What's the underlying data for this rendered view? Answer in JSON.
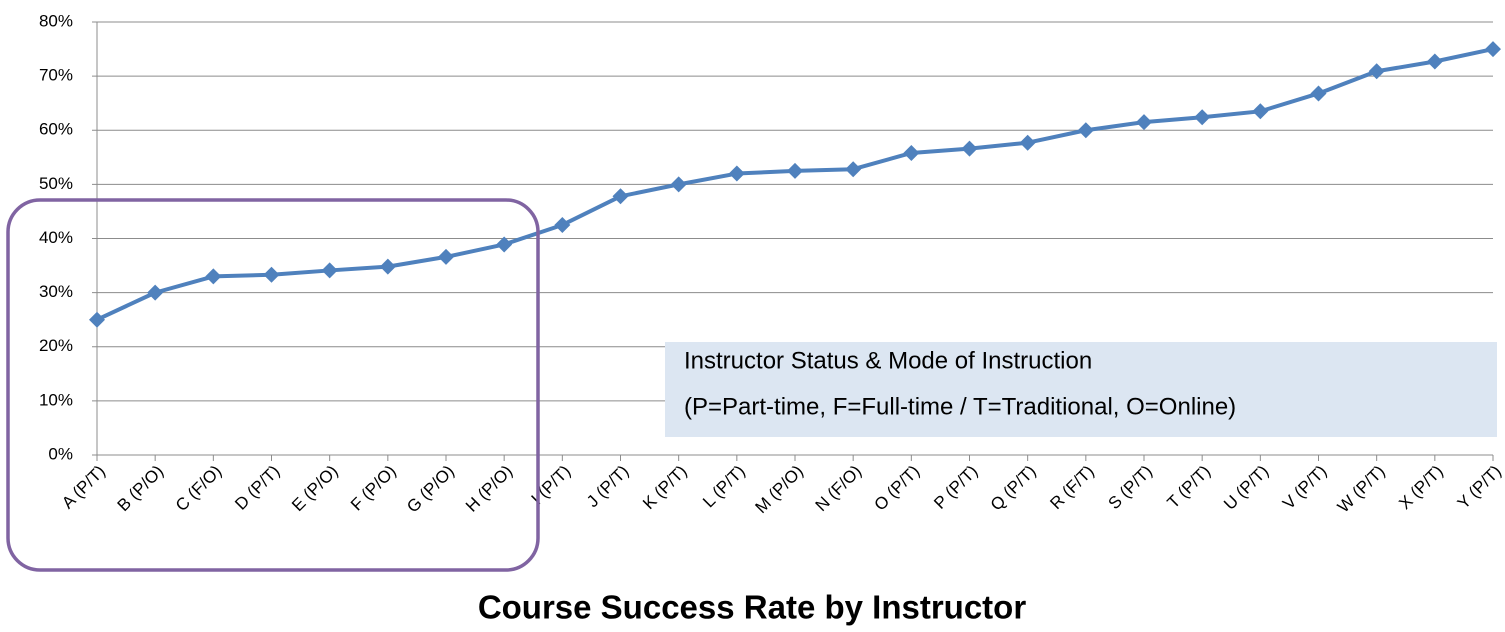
{
  "chart_data": {
    "type": "line",
    "title": "Course Success Rate by Instructor",
    "annotation": [
      "Instructor Status & Mode of Instruction",
      "(P=Part-time, F=Full-time / T=Traditional, O=Online)"
    ],
    "categories": [
      "A (P/T)",
      "B (P/O)",
      "C (F/O)",
      "D (P/T)",
      "E (P/O)",
      "F (P/O)",
      "G (P/O)",
      "H (P/O)",
      "I (P/T)",
      "J (P/T)",
      "K (P/T)",
      "L (P/T)",
      "M (P/O)",
      "N (F/O)",
      "O (P/T)",
      "P (P/T)",
      "Q (P/T)",
      "R (F/T)",
      "S (P/T)",
      "T (P/T)",
      "U (P/T)",
      "V (P/T)",
      "W (P/T)",
      "X (P/T)",
      "Y (P/T)"
    ],
    "values": [
      25,
      30,
      33,
      33.3,
      34.1,
      34.8,
      36.6,
      38.9,
      42.5,
      47.8,
      50,
      52,
      52.5,
      52.8,
      55.8,
      56.6,
      57.7,
      60,
      61.5,
      62.4,
      63.5,
      66.8,
      70.9,
      72.7,
      75
    ],
    "color": "#4f81bd",
    "ylim": [
      0,
      80
    ],
    "yticks": [
      {
        "value": 0,
        "label": "0%"
      },
      {
        "value": 10,
        "label": "10%"
      },
      {
        "value": 20,
        "label": "20%"
      },
      {
        "value": 30,
        "label": "30%"
      },
      {
        "value": 40,
        "label": "40%"
      },
      {
        "value": 50,
        "label": "50%"
      },
      {
        "value": 60,
        "label": "60%"
      },
      {
        "value": 70,
        "label": "70%"
      },
      {
        "value": 80,
        "label": "80%"
      }
    ],
    "grid": true
  }
}
